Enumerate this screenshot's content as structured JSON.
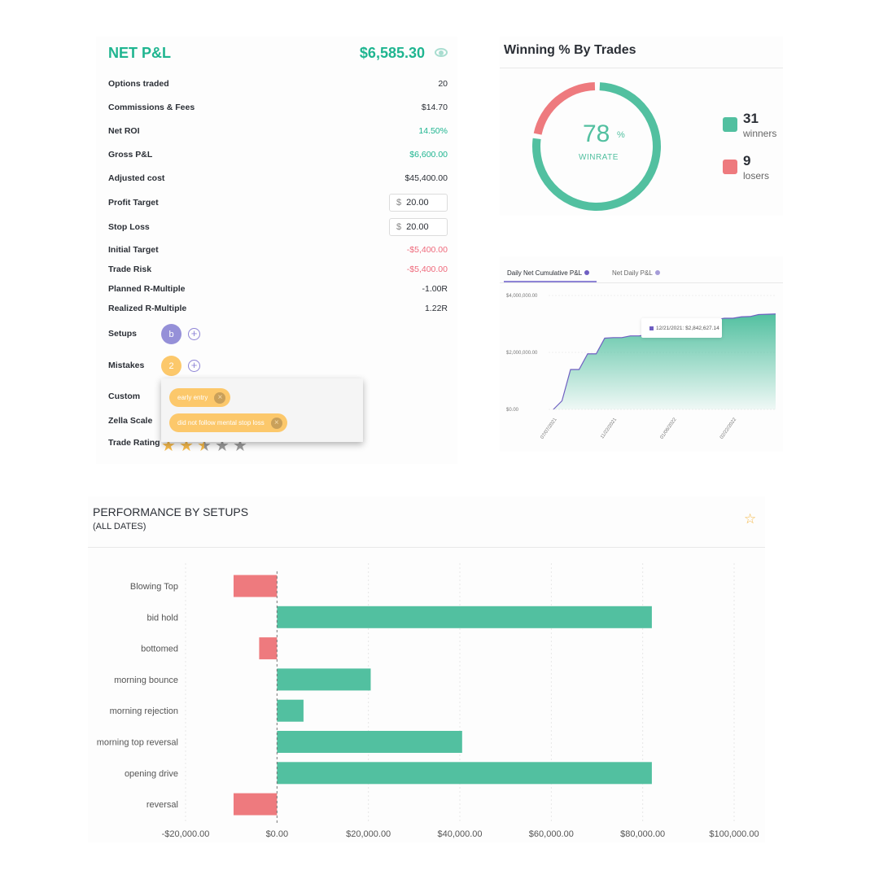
{
  "pnl": {
    "title": "NET P&L",
    "value": "$6,585.30",
    "rows": [
      {
        "label": "Options traded",
        "value": "20",
        "tone": ""
      },
      {
        "label": "Commissions & Fees",
        "value": "$14.70",
        "tone": ""
      },
      {
        "label": "Net ROI",
        "value": "14.50%",
        "tone": "green"
      },
      {
        "label": "Gross P&L",
        "value": "$6,600.00",
        "tone": "green"
      },
      {
        "label": "Adjusted cost",
        "value": "$45,400.00",
        "tone": ""
      }
    ],
    "profit_target": {
      "label": "Profit Target",
      "currency": "$",
      "value": "20.00"
    },
    "stop_loss": {
      "label": "Stop Loss",
      "currency": "$",
      "value": "20.00"
    },
    "rows2": [
      {
        "label": "Initial Target",
        "value": "-$5,400.00",
        "tone": "red"
      },
      {
        "label": "Trade Risk",
        "value": "-$5,400.00",
        "tone": "red"
      },
      {
        "label": "Planned R-Multiple",
        "value": "-1.00R",
        "tone": ""
      },
      {
        "label": "Realized R-Multiple",
        "value": "1.22R",
        "tone": ""
      }
    ],
    "setups": {
      "label": "Setups",
      "badge": "b"
    },
    "mistakes": {
      "label": "Mistakes",
      "badge": "2",
      "tags": [
        "early entry",
        "did not follow mental stop loss"
      ]
    },
    "custom_label": "Custom",
    "zella_label": "Zella Scale",
    "trade_rating": {
      "label": "Trade Rating",
      "stars": 2.5,
      "max": 5
    },
    "colors": {
      "accent": "#1fb590",
      "negative": "#ef6a7c",
      "setup": "#9590d8",
      "mistake": "#fcc86b"
    }
  },
  "winning": {
    "title": "Winning % By Trades",
    "percent": "78",
    "percent_sign": "%",
    "caption": "WINRATE",
    "winners": {
      "count": "31",
      "label": "winners",
      "color": "#52c0a0"
    },
    "losers": {
      "count": "9",
      "label": "losers",
      "color": "#ee7a7e"
    }
  },
  "cumulative": {
    "tabs": [
      {
        "label": "Daily Net Cumulative P&L",
        "active": true
      },
      {
        "label": "Net Daily P&L",
        "active": false
      }
    ],
    "tooltip": "12/21/2021: $2,842,627.14",
    "chart_data": {
      "type": "area",
      "y_ticks": [
        "$4,000,000.00",
        "$2,000,000.00",
        "$0.00"
      ],
      "ylim": [
        0,
        4000000
      ],
      "x_ticks": [
        {
          "index": 0,
          "label": "07/07/2021"
        },
        {
          "index": 7,
          "label": "11/22/2021"
        },
        {
          "index": 14,
          "label": "01/06/2022"
        },
        {
          "index": 21,
          "label": "02/22/2022"
        }
      ],
      "values": [
        0,
        300000,
        1400000,
        1400000,
        1950000,
        1950000,
        2500000,
        2520000,
        2520000,
        2580000,
        2580000,
        2620000,
        2650000,
        2660000,
        2800000,
        2810000,
        2842627,
        2950000,
        3050000,
        3150000,
        3200000,
        3200000,
        3250000,
        3260000,
        3330000,
        3340000,
        3350000
      ],
      "line_color": "#6f5fc2",
      "fill_color": "#52c0a0"
    }
  },
  "performance": {
    "title": "PERFORMANCE BY SETUPS",
    "subtitle": "(ALL DATES)",
    "chart_data": {
      "type": "bar",
      "orientation": "horizontal",
      "categories": [
        "Blowing Top",
        "bid hold",
        "bottomed",
        "morning bounce",
        "morning rejection",
        "morning top reversal",
        "opening drive",
        "reversal"
      ],
      "values": [
        -9500,
        82000,
        -3900,
        20500,
        5800,
        40500,
        82000,
        -9500
      ],
      "xlim": [
        -20000,
        100000
      ],
      "x_ticks": [
        "-$20,000.00",
        "$0.00",
        "$20,000.00",
        "$40,000.00",
        "$60,000.00",
        "$80,000.00",
        "$100,000.00"
      ],
      "x_tick_values": [
        -20000,
        0,
        20000,
        40000,
        60000,
        80000,
        100000
      ],
      "grid": true,
      "positive_color": "#52c0a0",
      "negative_color": "#ee7a7e"
    }
  }
}
